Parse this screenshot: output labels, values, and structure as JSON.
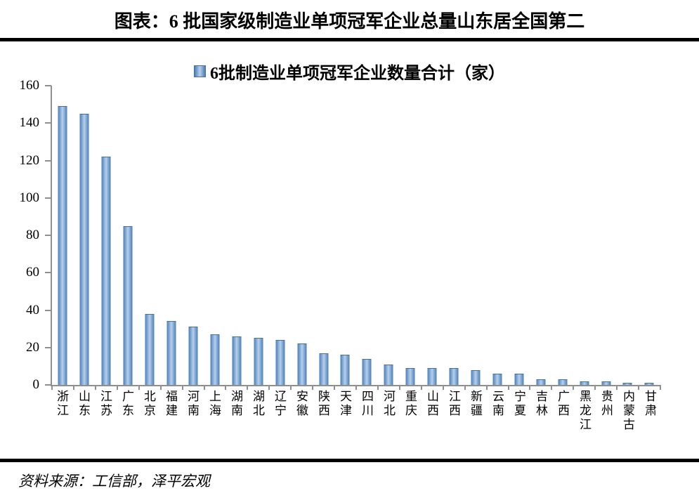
{
  "page": {
    "title": "图表：6 批国家级制造业单项冠军企业总量山东居全国第二",
    "source": "资料来源：工信部，泽平宏观"
  },
  "chart_data": {
    "type": "bar",
    "title": "6批制造业单项冠军企业数量合计（家）",
    "legend": [
      {
        "label": "6批制造业单项冠军企业数量合计（家）",
        "swatch": "blue-gradient-square"
      }
    ],
    "legend_position": "top-center",
    "categories": [
      "浙江",
      "山东",
      "江苏",
      "广东",
      "北京",
      "福建",
      "河南",
      "上海",
      "湖南",
      "湖北",
      "辽宁",
      "安徽",
      "陕西",
      "天津",
      "四川",
      "河北",
      "重庆",
      "山西",
      "江西",
      "新疆",
      "云南",
      "宁夏",
      "吉林",
      "广西",
      "黑龙江",
      "贵州",
      "内蒙古",
      "甘肃"
    ],
    "values": [
      149,
      145,
      122,
      85,
      38,
      34,
      31,
      27,
      26,
      25,
      24,
      22,
      17,
      16,
      14,
      11,
      9,
      9,
      9,
      8,
      6,
      6,
      3,
      3,
      2,
      2,
      1,
      1
    ],
    "xlabel": "",
    "ylabel": "",
    "ylim": [
      0,
      160
    ],
    "ytick_step": 20,
    "yticks": [
      0,
      20,
      40,
      60,
      80,
      100,
      120,
      140,
      160
    ],
    "grid": false,
    "bar_color_edge": "#4a7cb5",
    "bar_color_center": "#b9cfe8",
    "axis_color": "#8f8f8f",
    "rule_color": "#000000"
  }
}
